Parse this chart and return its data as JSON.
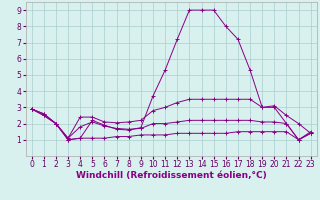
{
  "title": "",
  "xlabel": "Windchill (Refroidissement éolien,°C)",
  "ylabel": "",
  "background_color": "#d8f0ee",
  "grid_color": "#aacece",
  "line_color": "#880088",
  "x": [
    0,
    1,
    2,
    3,
    4,
    5,
    6,
    7,
    8,
    9,
    10,
    11,
    12,
    13,
    14,
    15,
    16,
    17,
    18,
    19,
    20,
    21,
    22,
    23
  ],
  "lineA": [
    2.9,
    2.6,
    2.0,
    1.0,
    1.1,
    2.2,
    1.9,
    1.65,
    1.6,
    1.75,
    3.7,
    5.3,
    7.2,
    9.0,
    9.0,
    9.0,
    8.0,
    7.2,
    5.3,
    3.0,
    3.0,
    2.0,
    1.0,
    1.4
  ],
  "lineB": [
    2.9,
    2.6,
    2.0,
    1.1,
    2.4,
    2.4,
    2.1,
    2.05,
    2.1,
    2.2,
    2.8,
    3.0,
    3.3,
    3.5,
    3.5,
    3.5,
    3.5,
    3.5,
    3.5,
    3.0,
    3.1,
    2.5,
    2.0,
    1.4
  ],
  "lineC": [
    2.9,
    2.5,
    2.0,
    1.1,
    1.8,
    2.1,
    1.85,
    1.7,
    1.65,
    1.7,
    2.0,
    2.0,
    2.1,
    2.2,
    2.2,
    2.2,
    2.2,
    2.2,
    2.2,
    2.1,
    2.1,
    2.0,
    1.0,
    1.5
  ],
  "lineD": [
    2.9,
    2.5,
    2.0,
    1.0,
    1.1,
    1.1,
    1.1,
    1.2,
    1.2,
    1.3,
    1.3,
    1.3,
    1.4,
    1.4,
    1.4,
    1.4,
    1.4,
    1.5,
    1.5,
    1.5,
    1.5,
    1.5,
    1.0,
    1.4
  ],
  "ylim": [
    0,
    9.5
  ],
  "xlim": [
    -0.5,
    23.5
  ],
  "yticks": [
    1,
    2,
    3,
    4,
    5,
    6,
    7,
    8,
    9
  ],
  "xticks": [
    0,
    1,
    2,
    3,
    4,
    5,
    6,
    7,
    8,
    9,
    10,
    11,
    12,
    13,
    14,
    15,
    16,
    17,
    18,
    19,
    20,
    21,
    22,
    23
  ],
  "tick_fontsize": 5.5,
  "xlabel_fontsize": 6.5
}
